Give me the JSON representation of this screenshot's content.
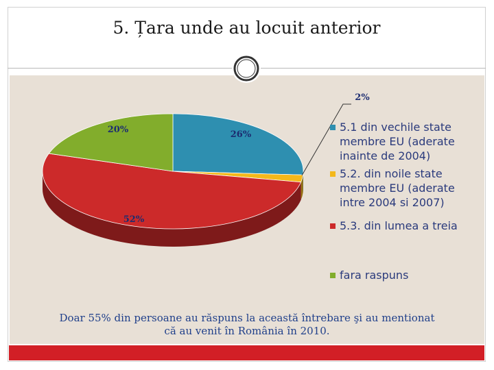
{
  "title": "5. Țara unde au  locuit  anterior",
  "caption_line1": "Doar 55% din persoane au răspuns la această întrebare şi au mentionat",
  "caption_line2": "că au venit în România în 2010.",
  "chart_data": {
    "type": "pie",
    "categories": [
      "5.1 din vechile state membre EU (aderate inainte de 2004)",
      "5.2. din noile state membre EU  (aderate intre 2004 si 2007)",
      "5.3. din lumea a treia",
      "fara raspuns"
    ],
    "values": [
      26,
      2,
      52,
      20
    ],
    "data_labels": [
      "26%",
      "2%",
      "52%",
      "20%"
    ],
    "colors": [
      "#2e8fb0",
      "#f4b81a",
      "#cc2a2a",
      "#82ad2c"
    ],
    "legend_lines": [
      [
        "5.1 din vechile state",
        "membre EU (aderate",
        "inainte de 2004)"
      ],
      [
        "5.2. din noile state",
        "membre EU  (aderate",
        "intre 2004 si 2007)"
      ],
      [
        "5.3. din lumea a treia"
      ],
      [
        "fara raspuns"
      ]
    ],
    "legend_position": "right"
  }
}
